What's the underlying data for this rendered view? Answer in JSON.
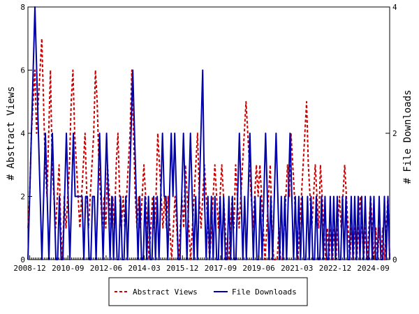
{
  "chart_data": {
    "type": "line",
    "xlabel": "",
    "ylabel": "# Abstract Views",
    "y2label": "# File Downloads",
    "x_tick_labels": [
      "2008-12",
      "2010-09",
      "2012-06",
      "2014-03",
      "2015-12",
      "2017-09",
      "2019-06",
      "2021-03",
      "2022-12",
      "2024-09"
    ],
    "x_range": [
      "2008-11",
      "2025-06"
    ],
    "ylim": [
      0,
      8
    ],
    "y_ticks": [
      0,
      2,
      4,
      6,
      8
    ],
    "y2lim": [
      0,
      4
    ],
    "y2_ticks": [
      0,
      2,
      4
    ],
    "grid": false,
    "legend_position": "bottom-center",
    "colors": {
      "abstract_views": "#cc0000",
      "file_downloads": "#0000aa"
    },
    "series": [
      {
        "name": "Abstract Views",
        "axis": "left",
        "style": "dashed",
        "values": [
          1,
          2,
          4,
          5,
          6,
          4,
          5,
          6,
          7,
          5,
          3,
          2,
          4,
          6,
          3,
          2,
          1,
          2,
          3,
          1,
          0,
          2,
          1,
          2,
          3,
          5,
          6,
          4,
          3,
          2,
          1,
          2,
          3,
          4,
          2,
          1,
          2,
          3,
          4,
          6,
          5,
          3,
          2,
          1,
          2,
          1,
          3,
          2,
          1,
          2,
          1,
          3,
          4,
          2,
          1,
          2,
          1,
          2,
          3,
          4,
          6,
          4,
          2,
          1,
          2,
          1,
          2,
          3,
          2,
          1,
          0,
          1,
          2,
          1,
          2,
          4,
          3,
          2,
          1,
          2,
          1,
          2,
          1,
          0,
          1,
          2,
          1,
          0,
          1,
          2,
          1,
          3,
          2,
          1,
          0,
          1,
          2,
          3,
          4,
          2,
          1,
          2,
          3,
          2,
          1,
          0,
          1,
          2,
          3,
          2,
          1,
          2,
          3,
          2,
          1,
          0,
          0,
          1,
          2,
          1,
          3,
          2,
          1,
          2,
          3,
          4,
          5,
          4,
          3,
          2,
          1,
          2,
          3,
          2,
          3,
          2,
          1,
          0,
          1,
          2,
          3,
          1,
          0,
          0,
          0,
          1,
          0,
          0,
          1,
          2,
          3,
          2,
          4,
          3,
          2,
          1,
          0,
          1,
          2,
          3,
          4,
          5,
          3,
          2,
          1,
          2,
          3,
          2,
          1,
          3,
          2,
          1,
          0,
          1,
          0,
          1,
          0,
          1,
          0,
          1,
          2,
          1,
          2,
          3,
          2,
          1,
          0,
          1,
          0,
          1,
          0,
          1,
          2,
          1,
          0,
          1,
          0,
          1,
          2,
          1,
          0,
          1,
          0,
          1,
          0,
          1,
          0,
          1,
          2,
          0
        ]
      },
      {
        "name": "File Downloads",
        "axis": "right",
        "style": "solid",
        "values": [
          0,
          1,
          2,
          3,
          4,
          3,
          2,
          1,
          0,
          1,
          2,
          1,
          0,
          1,
          2,
          1,
          0,
          0,
          1,
          0,
          0,
          1,
          2,
          1,
          0,
          1,
          2,
          1,
          1,
          1,
          1,
          1,
          0,
          1,
          1,
          0,
          0,
          1,
          1,
          0,
          1,
          2,
          1,
          0,
          1,
          2,
          1,
          0,
          1,
          0,
          1,
          0,
          0,
          1,
          0,
          0,
          1,
          0,
          1,
          2,
          3,
          2,
          1,
          0,
          1,
          0,
          0,
          1,
          0,
          1,
          0,
          0,
          1,
          0,
          1,
          0,
          1,
          2,
          1,
          1,
          0,
          1,
          2,
          1,
          2,
          1,
          0,
          0,
          1,
          2,
          1,
          0,
          1,
          2,
          1,
          0,
          1,
          0,
          1,
          2,
          3,
          1,
          0,
          1,
          0,
          1,
          0,
          1,
          0,
          0,
          1,
          0,
          1,
          0,
          0,
          1,
          0,
          1,
          0,
          0,
          1,
          2,
          1,
          0,
          1,
          0,
          1,
          2,
          1,
          0,
          1,
          0,
          0,
          1,
          0,
          1,
          2,
          1,
          0,
          1,
          0,
          1,
          2,
          1,
          0,
          1,
          0,
          1,
          0,
          1,
          2,
          1,
          0,
          1,
          0,
          1,
          0,
          1,
          0,
          0,
          1,
          0,
          1,
          0,
          0,
          1,
          0,
          0,
          1,
          0,
          1,
          0,
          0,
          1,
          0,
          1,
          0,
          1,
          0,
          0,
          1,
          0,
          1,
          0,
          0,
          1,
          0,
          1,
          0,
          1,
          0,
          1,
          0,
          1,
          0,
          0,
          1,
          0,
          1,
          0,
          0,
          1,
          0,
          0,
          1,
          0,
          1,
          0
        ]
      }
    ]
  }
}
